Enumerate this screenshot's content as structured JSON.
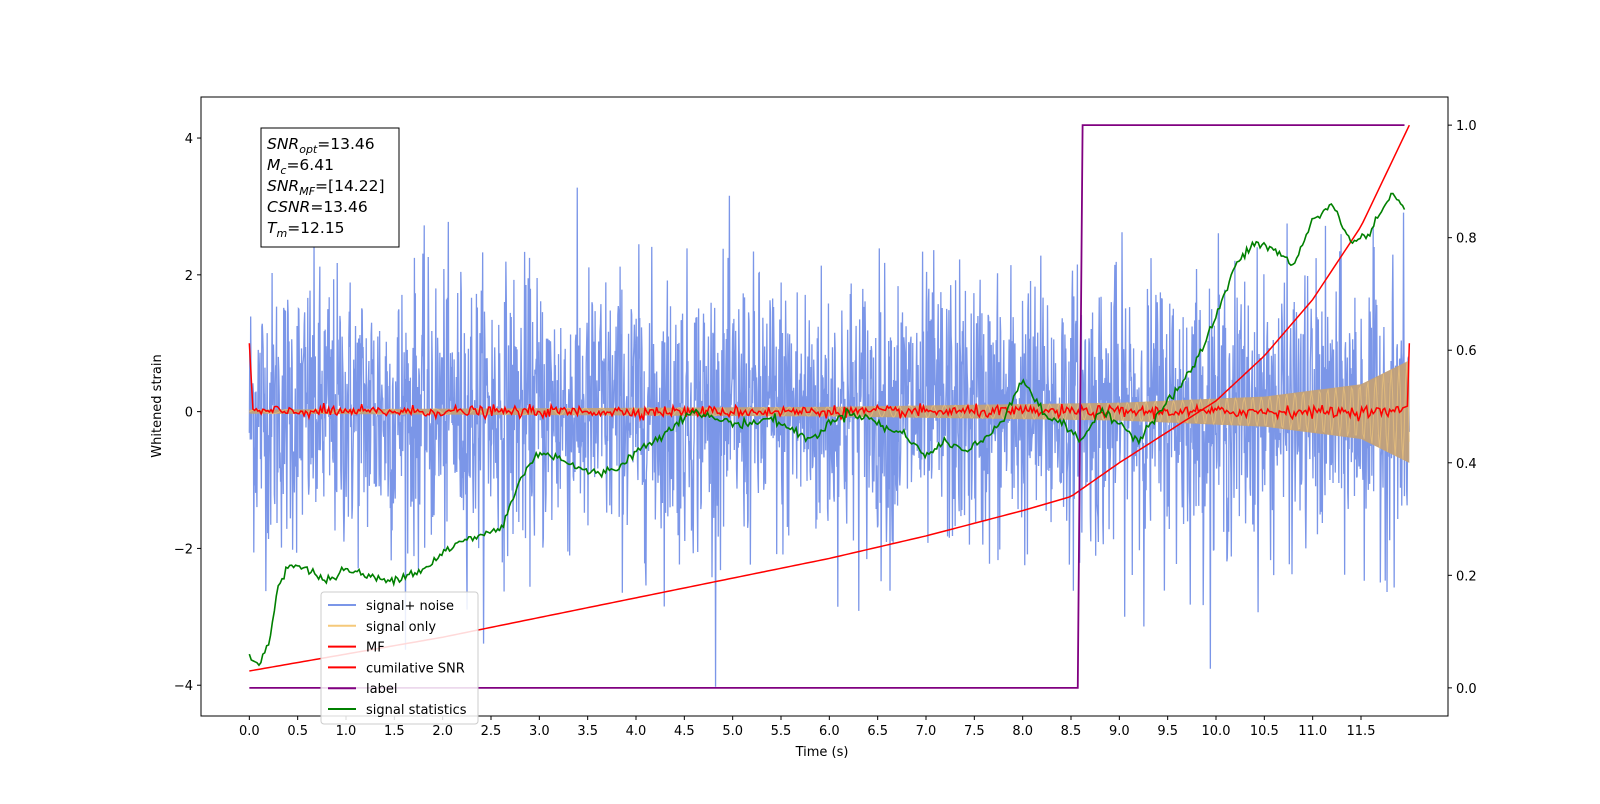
{
  "chart_data": {
    "type": "line",
    "xlabel": "Time (s)",
    "ylabel": "Whitened strain",
    "xlim": [
      -0.5,
      12.4
    ],
    "ylim": [
      -4.45,
      4.6
    ],
    "y2lim": [
      -0.05,
      1.05
    ],
    "x_ticks": [
      "0.0",
      "0.5",
      "1.0",
      "1.5",
      "2.0",
      "2.5",
      "3.0",
      "3.5",
      "4.0",
      "4.5",
      "5.0",
      "5.5",
      "6.0",
      "6.5",
      "7.0",
      "7.5",
      "8.0",
      "8.5",
      "9.0",
      "9.5",
      "10.0",
      "10.5",
      "11.0",
      "11.5"
    ],
    "y_ticks": [
      "4",
      "2",
      "0",
      "−2",
      "−4"
    ],
    "y2_ticks": [
      "1.0",
      "0.8",
      "0.6",
      "0.4",
      "0.2",
      "0.0"
    ],
    "annotation": {
      "lines": [
        {
          "sym": "SNR",
          "sub": "opt",
          "value": "=13.46"
        },
        {
          "sym": "M",
          "sub": "c",
          "value": "=6.41"
        },
        {
          "sym": "SNR",
          "sub": "MF",
          "value": "=[14.22]"
        },
        {
          "sym": "CSNR",
          "sub": "",
          "value": "=13.46"
        },
        {
          "sym": "T",
          "sub": "m",
          "value": "=12.15"
        }
      ]
    },
    "legend_position": "lower-left",
    "series": [
      {
        "name": "signal+ noise",
        "color": "#7b96e8",
        "axis": "left",
        "noise_sigma": 1.0,
        "t_range": [
          0,
          12
        ]
      },
      {
        "name": "signal only",
        "color": "#f5c97a",
        "axis": "left",
        "envelope": {
          "t": [
            0,
            6,
            9,
            10.5,
            11.5,
            12
          ],
          "amp": [
            0.03,
            0.07,
            0.13,
            0.22,
            0.4,
            0.75
          ]
        }
      },
      {
        "name": "MF",
        "color": "#ff0000",
        "axis": "left",
        "baseline": 0,
        "ripple": 0.06,
        "edges": 1.0
      },
      {
        "name": "cumilative SNR",
        "color": "#ff0000",
        "axis": "right",
        "x": [
          0,
          1,
          2,
          3,
          4,
          5,
          6,
          7,
          8,
          8.5,
          9,
          10,
          10.5,
          11,
          11.5,
          12
        ],
        "y": [
          0.03,
          0.06,
          0.09,
          0.125,
          0.16,
          0.195,
          0.23,
          0.27,
          0.315,
          0.34,
          0.4,
          0.51,
          0.59,
          0.69,
          0.82,
          1.0
        ]
      },
      {
        "name": "label",
        "color": "#800080",
        "axis": "right",
        "x": [
          0,
          8.57,
          8.62,
          11.95
        ],
        "y": [
          0.0,
          0.0,
          1.0,
          1.0
        ]
      },
      {
        "name": "signal statistics",
        "color": "#008000",
        "axis": "right",
        "x": [
          0,
          0.1,
          0.2,
          0.3,
          0.4,
          0.6,
          0.8,
          1.0,
          1.2,
          1.4,
          1.6,
          1.8,
          2.0,
          2.2,
          2.4,
          2.5,
          2.6,
          2.8,
          3.0,
          3.2,
          3.4,
          3.6,
          3.8,
          4.0,
          4.2,
          4.4,
          4.6,
          4.8,
          5.0,
          5.2,
          5.4,
          5.6,
          5.8,
          6.0,
          6.2,
          6.4,
          6.6,
          6.8,
          7.0,
          7.2,
          7.4,
          7.6,
          7.8,
          8.0,
          8.2,
          8.4,
          8.6,
          8.8,
          9.0,
          9.2,
          9.4,
          9.6,
          9.8,
          10.0,
          10.2,
          10.4,
          10.6,
          10.8,
          11.0,
          11.2,
          11.4,
          11.6,
          11.8,
          11.95
        ],
        "y": [
          0.06,
          0.04,
          0.08,
          0.18,
          0.22,
          0.21,
          0.19,
          0.21,
          0.2,
          0.19,
          0.2,
          0.21,
          0.24,
          0.26,
          0.27,
          0.28,
          0.28,
          0.37,
          0.42,
          0.41,
          0.39,
          0.38,
          0.39,
          0.42,
          0.44,
          0.47,
          0.49,
          0.48,
          0.47,
          0.47,
          0.48,
          0.46,
          0.44,
          0.47,
          0.49,
          0.48,
          0.46,
          0.45,
          0.41,
          0.44,
          0.42,
          0.44,
          0.48,
          0.55,
          0.49,
          0.47,
          0.44,
          0.49,
          0.47,
          0.44,
          0.49,
          0.53,
          0.58,
          0.66,
          0.75,
          0.79,
          0.78,
          0.75,
          0.83,
          0.86,
          0.79,
          0.81,
          0.88,
          0.85
        ]
      }
    ]
  }
}
